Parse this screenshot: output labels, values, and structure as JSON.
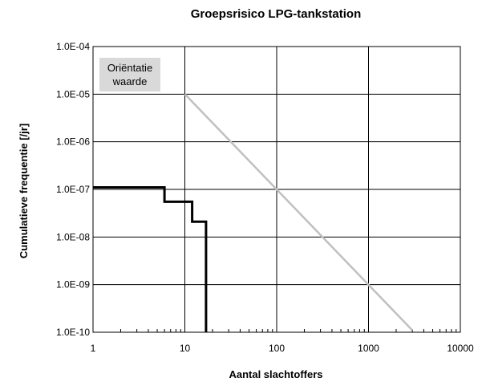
{
  "chart_data": {
    "type": "line",
    "title": "Groepsrisico LPG-tankstation",
    "xlabel": "Aantal slachtoffers",
    "ylabel": "Cumulatieve frequentie [/jr]",
    "xscale": "log",
    "yscale": "log",
    "xlim": [
      1,
      10000
    ],
    "ylim": [
      1e-10,
      0.0001
    ],
    "grid": true,
    "legend": "none",
    "x_ticks": [
      {
        "value": 1,
        "label": "1"
      },
      {
        "value": 10,
        "label": "10"
      },
      {
        "value": 100,
        "label": "100"
      },
      {
        "value": 1000,
        "label": "1000"
      },
      {
        "value": 10000,
        "label": "10000"
      }
    ],
    "y_ticks": [
      {
        "value": 0.0001,
        "label": "1.0E-04"
      },
      {
        "value": 1e-05,
        "label": "1.0E-05"
      },
      {
        "value": 1e-06,
        "label": "1.0E-06"
      },
      {
        "value": 1e-07,
        "label": "1.0E-07"
      },
      {
        "value": 1e-08,
        "label": "1.0E-08"
      },
      {
        "value": 1e-09,
        "label": "1.0E-09"
      },
      {
        "value": 1e-10,
        "label": "1.0E-10"
      }
    ],
    "series": [
      {
        "color": "#000000",
        "step": true,
        "points": [
          [
            1,
            1.1e-07
          ],
          [
            6,
            1.1e-07
          ],
          [
            6,
            5.5e-08
          ],
          [
            12,
            5.5e-08
          ],
          [
            12,
            2.1e-08
          ],
          [
            17,
            2.1e-08
          ],
          [
            17,
            1e-10
          ]
        ]
      },
      {
        "color": "#c0c0c0",
        "points": [
          [
            10,
            1e-05
          ],
          [
            3000,
            1.1e-10
          ]
        ]
      }
    ],
    "annotations": [
      {
        "lines": [
          "Oriëntatie",
          "waarde"
        ],
        "background": "#d9d9d9"
      }
    ]
  }
}
